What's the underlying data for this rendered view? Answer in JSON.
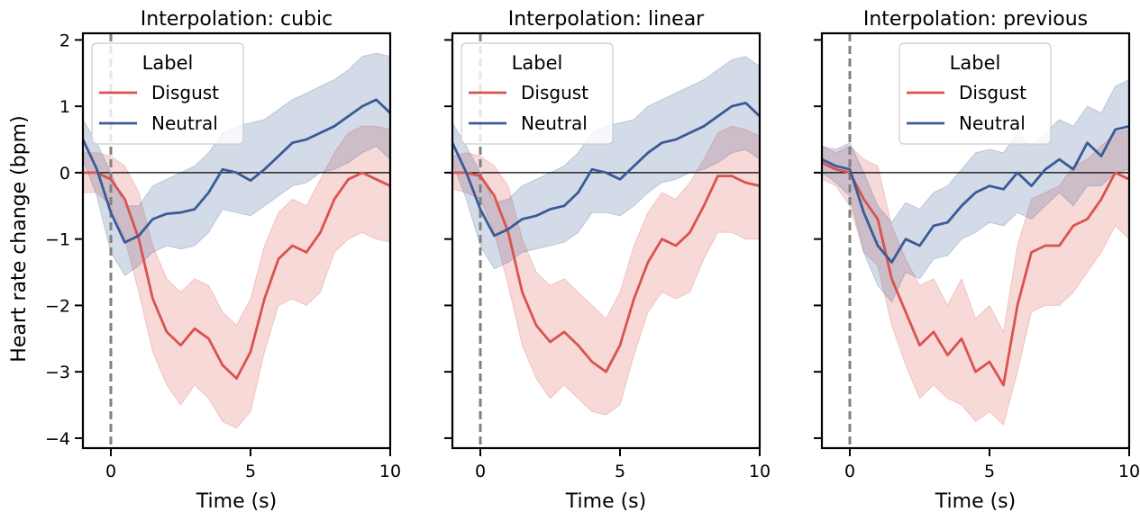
{
  "chart_data": [
    {
      "type": "line",
      "title": "Interpolation: cubic",
      "xlabel": "Time (s)",
      "ylabel": "Heart rate change (bpm)",
      "xlim": [
        -1.0,
        10.0
      ],
      "ylim": [
        -4.15,
        2.1
      ],
      "x_ticks": [
        0,
        5,
        10
      ],
      "x_tick_labels": [
        "0",
        "5",
        "10"
      ],
      "y_ticks": [
        -4,
        -3,
        -2,
        -1,
        0,
        1,
        2
      ],
      "y_tick_labels": [
        "−4",
        "−3",
        "−2",
        "−1",
        "0",
        "1",
        "2"
      ],
      "legend": {
        "title": "Label",
        "placement": "upper-left",
        "entries": [
          "Disgust",
          "Neutral"
        ]
      },
      "onset_line_x": 0,
      "reference_line_y": 0,
      "series": [
        {
          "name": "Disgust",
          "color": "#d9534f",
          "x": [
            -1.0,
            -0.5,
            0.0,
            0.5,
            1.0,
            1.5,
            2.0,
            2.5,
            3.0,
            3.5,
            4.0,
            4.5,
            5.0,
            5.5,
            6.0,
            6.5,
            7.0,
            7.5,
            8.0,
            8.5,
            9.0,
            9.5,
            10.0
          ],
          "y": [
            0.0,
            0.0,
            -0.1,
            -0.4,
            -1.0,
            -1.9,
            -2.4,
            -2.6,
            -2.35,
            -2.5,
            -2.9,
            -3.1,
            -2.7,
            -1.9,
            -1.3,
            -1.1,
            -1.2,
            -0.9,
            -0.4,
            -0.1,
            0.0,
            -0.1,
            -0.2
          ],
          "lower": [
            -0.3,
            -0.3,
            -0.5,
            -1.0,
            -1.8,
            -2.7,
            -3.2,
            -3.5,
            -3.2,
            -3.4,
            -3.75,
            -3.85,
            -3.6,
            -2.7,
            -2.0,
            -1.9,
            -2.0,
            -1.8,
            -1.2,
            -1.0,
            -0.9,
            -1.0,
            -1.05
          ],
          "upper": [
            0.3,
            0.3,
            0.25,
            0.1,
            -0.3,
            -1.1,
            -1.6,
            -1.8,
            -1.6,
            -1.7,
            -2.1,
            -2.3,
            -1.9,
            -1.1,
            -0.6,
            -0.4,
            -0.5,
            -0.1,
            0.3,
            0.6,
            0.7,
            0.7,
            0.65
          ]
        },
        {
          "name": "Neutral",
          "color": "#3a5b96",
          "x": [
            -1.0,
            -0.5,
            0.0,
            0.5,
            1.0,
            1.5,
            2.0,
            2.5,
            3.0,
            3.5,
            4.0,
            4.5,
            5.0,
            5.5,
            6.0,
            6.5,
            7.0,
            7.5,
            8.0,
            8.5,
            9.0,
            9.5,
            10.0
          ],
          "y": [
            0.5,
            0.05,
            -0.6,
            -1.05,
            -0.95,
            -0.7,
            -0.62,
            -0.6,
            -0.55,
            -0.3,
            0.05,
            0.0,
            -0.12,
            0.05,
            0.25,
            0.45,
            0.5,
            0.6,
            0.7,
            0.85,
            1.0,
            1.1,
            0.9
          ],
          "lower": [
            0.2,
            -0.35,
            -1.2,
            -1.55,
            -1.4,
            -1.2,
            -1.1,
            -1.15,
            -1.1,
            -0.9,
            -0.55,
            -0.6,
            -0.65,
            -0.5,
            -0.35,
            -0.2,
            -0.15,
            0.0,
            0.05,
            0.15,
            0.3,
            0.4,
            0.2
          ],
          "upper": [
            0.8,
            0.45,
            0.0,
            -0.5,
            -0.5,
            -0.2,
            -0.1,
            0.0,
            0.1,
            0.3,
            0.6,
            0.7,
            0.75,
            0.8,
            0.95,
            1.1,
            1.2,
            1.3,
            1.4,
            1.55,
            1.75,
            1.8,
            1.75
          ]
        }
      ]
    },
    {
      "type": "line",
      "title": "Interpolation: linear",
      "xlabel": "Time (s)",
      "ylabel": "",
      "xlim": [
        -1.0,
        10.0
      ],
      "ylim": [
        -4.15,
        2.1
      ],
      "x_ticks": [
        0,
        5,
        10
      ],
      "x_tick_labels": [
        "0",
        "5",
        "10"
      ],
      "y_ticks": [
        -4,
        -3,
        -2,
        -1,
        0,
        1,
        2
      ],
      "y_tick_labels": [],
      "legend": {
        "title": "Label",
        "placement": "upper-left",
        "entries": [
          "Disgust",
          "Neutral"
        ]
      },
      "onset_line_x": 0,
      "reference_line_y": 0,
      "series": [
        {
          "name": "Disgust",
          "color": "#d9534f",
          "x": [
            -1.0,
            -0.5,
            0.0,
            0.5,
            1.0,
            1.5,
            2.0,
            2.5,
            3.0,
            3.5,
            4.0,
            4.5,
            5.0,
            5.5,
            6.0,
            6.5,
            7.0,
            7.5,
            8.0,
            8.5,
            9.0,
            9.5,
            10.0
          ],
          "y": [
            0.0,
            0.0,
            -0.05,
            -0.35,
            -0.9,
            -1.8,
            -2.3,
            -2.55,
            -2.4,
            -2.6,
            -2.85,
            -3.0,
            -2.6,
            -1.9,
            -1.35,
            -1.0,
            -1.1,
            -0.9,
            -0.5,
            -0.05,
            -0.05,
            -0.15,
            -0.2
          ],
          "lower": [
            -0.25,
            -0.3,
            -0.4,
            -0.9,
            -1.7,
            -2.6,
            -3.1,
            -3.4,
            -3.2,
            -3.4,
            -3.6,
            -3.65,
            -3.5,
            -2.75,
            -2.1,
            -1.8,
            -1.9,
            -1.8,
            -1.3,
            -0.9,
            -0.9,
            -1.0,
            -1.0
          ],
          "upper": [
            0.25,
            0.3,
            0.25,
            0.1,
            -0.2,
            -1.0,
            -1.5,
            -1.7,
            -1.6,
            -1.8,
            -2.0,
            -2.2,
            -1.8,
            -1.1,
            -0.6,
            -0.3,
            -0.4,
            -0.15,
            0.2,
            0.6,
            0.7,
            0.65,
            0.55
          ]
        },
        {
          "name": "Neutral",
          "color": "#3a5b96",
          "x": [
            -1.0,
            -0.5,
            0.0,
            0.5,
            1.0,
            1.5,
            2.0,
            2.5,
            3.0,
            3.5,
            4.0,
            4.5,
            5.0,
            5.5,
            6.0,
            6.5,
            7.0,
            7.5,
            8.0,
            8.5,
            9.0,
            9.5,
            10.0
          ],
          "y": [
            0.45,
            0.0,
            -0.55,
            -0.95,
            -0.85,
            -0.7,
            -0.65,
            -0.55,
            -0.5,
            -0.3,
            0.05,
            0.0,
            -0.1,
            0.1,
            0.3,
            0.45,
            0.5,
            0.6,
            0.7,
            0.85,
            1.0,
            1.05,
            0.85
          ],
          "lower": [
            0.15,
            -0.4,
            -1.1,
            -1.45,
            -1.35,
            -1.2,
            -1.15,
            -1.1,
            -1.05,
            -0.9,
            -0.6,
            -0.6,
            -0.65,
            -0.5,
            -0.3,
            -0.15,
            -0.1,
            0.0,
            0.05,
            0.15,
            0.3,
            0.35,
            0.2
          ],
          "upper": [
            0.75,
            0.4,
            0.0,
            -0.45,
            -0.4,
            -0.2,
            -0.1,
            0.0,
            0.1,
            0.3,
            0.6,
            0.7,
            0.75,
            0.8,
            1.0,
            1.1,
            1.2,
            1.3,
            1.4,
            1.55,
            1.7,
            1.75,
            1.6
          ]
        }
      ]
    },
    {
      "type": "line",
      "title": "Interpolation: previous",
      "xlabel": "Time (s)",
      "ylabel": "",
      "xlim": [
        -1.0,
        10.0
      ],
      "ylim": [
        -4.15,
        2.1
      ],
      "x_ticks": [
        0,
        5,
        10
      ],
      "x_tick_labels": [
        "0",
        "5",
        "10"
      ],
      "y_ticks": [
        -4,
        -3,
        -2,
        -1,
        0,
        1,
        2
      ],
      "y_tick_labels": [],
      "legend": {
        "title": "Label",
        "placement": "upper-center",
        "entries": [
          "Disgust",
          "Neutral"
        ]
      },
      "onset_line_x": 0,
      "reference_line_y": 0,
      "series": [
        {
          "name": "Disgust",
          "color": "#d9534f",
          "x": [
            -1.0,
            -0.5,
            0.0,
            0.5,
            1.0,
            1.5,
            2.0,
            2.5,
            3.0,
            3.5,
            4.0,
            4.5,
            5.0,
            5.5,
            6.0,
            6.5,
            7.0,
            7.5,
            8.0,
            8.5,
            9.0,
            9.5,
            10.0
          ],
          "y": [
            0.15,
            0.05,
            0.0,
            -0.4,
            -0.7,
            -1.6,
            -2.1,
            -2.6,
            -2.4,
            -2.75,
            -2.5,
            -3.0,
            -2.85,
            -3.2,
            -2.0,
            -1.2,
            -1.1,
            -1.1,
            -0.8,
            -0.7,
            -0.4,
            0.0,
            -0.1
          ],
          "lower": [
            -0.1,
            -0.2,
            -0.5,
            -1.2,
            -1.4,
            -2.3,
            -2.9,
            -3.4,
            -3.2,
            -3.4,
            -3.5,
            -3.75,
            -3.6,
            -3.8,
            -3.0,
            -2.1,
            -2.0,
            -2.0,
            -1.8,
            -1.5,
            -1.2,
            -0.8,
            -1.0
          ],
          "upper": [
            0.4,
            0.3,
            0.4,
            0.2,
            0.1,
            -0.8,
            -1.3,
            -1.7,
            -1.6,
            -2.0,
            -1.6,
            -2.2,
            -2.0,
            -2.4,
            -1.1,
            -0.4,
            -0.3,
            -0.2,
            0.1,
            0.2,
            0.4,
            0.6,
            0.65
          ]
        },
        {
          "name": "Neutral",
          "color": "#3a5b96",
          "x": [
            -1.0,
            -0.5,
            0.0,
            0.5,
            1.0,
            1.5,
            2.0,
            2.5,
            3.0,
            3.5,
            4.0,
            4.5,
            5.0,
            5.5,
            6.0,
            6.5,
            7.0,
            7.5,
            8.0,
            8.5,
            9.0,
            9.5,
            10.0
          ],
          "y": [
            0.2,
            0.1,
            0.05,
            -0.6,
            -1.1,
            -1.35,
            -1.0,
            -1.1,
            -0.8,
            -0.75,
            -0.5,
            -0.3,
            -0.2,
            -0.25,
            0.0,
            -0.2,
            0.05,
            0.2,
            0.05,
            0.45,
            0.25,
            0.65,
            0.7
          ],
          "lower": [
            0.0,
            -0.15,
            -0.35,
            -1.2,
            -1.7,
            -1.95,
            -1.5,
            -1.6,
            -1.3,
            -1.25,
            -1.0,
            -0.9,
            -0.75,
            -0.8,
            -0.6,
            -0.7,
            -0.5,
            -0.3,
            -0.5,
            -0.2,
            -0.2,
            0.0,
            0.05
          ],
          "upper": [
            0.4,
            0.35,
            0.45,
            0.0,
            -0.5,
            -0.75,
            -0.45,
            -0.55,
            -0.3,
            -0.2,
            0.05,
            0.3,
            0.35,
            0.3,
            0.6,
            0.4,
            0.6,
            0.8,
            0.7,
            1.0,
            0.9,
            1.3,
            1.4
          ]
        }
      ]
    }
  ]
}
